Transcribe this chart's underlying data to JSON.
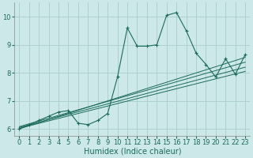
{
  "xlabel": "Humidex (Indice chaleur)",
  "bg_color": "#cce8e8",
  "grid_color": "#aacccc",
  "line_color": "#1a6b5a",
  "xlim": [
    -0.5,
    23.5
  ],
  "ylim": [
    5.75,
    10.5
  ],
  "xticks": [
    0,
    1,
    2,
    3,
    4,
    5,
    6,
    7,
    8,
    9,
    10,
    11,
    12,
    13,
    14,
    15,
    16,
    17,
    18,
    19,
    20,
    21,
    22,
    23
  ],
  "yticks": [
    6,
    7,
    8,
    9,
    10
  ],
  "main_x": [
    0,
    1,
    2,
    3,
    4,
    5,
    6,
    7,
    8,
    9,
    10,
    11,
    12,
    13,
    14,
    15,
    16,
    17,
    18,
    19,
    20,
    21,
    22,
    23
  ],
  "main_y": [
    6.0,
    6.15,
    6.3,
    6.45,
    6.6,
    6.65,
    6.2,
    6.15,
    6.3,
    6.55,
    7.85,
    9.6,
    8.95,
    8.95,
    9.0,
    10.05,
    10.15,
    9.5,
    8.7,
    8.3,
    7.85,
    8.5,
    7.95,
    8.65
  ],
  "reg_lines": [
    {
      "x0": 0,
      "y0": 6.02,
      "x1": 23,
      "y1": 8.05
    },
    {
      "x0": 0,
      "y0": 6.05,
      "x1": 23,
      "y1": 8.2
    },
    {
      "x0": 0,
      "y0": 6.08,
      "x1": 23,
      "y1": 8.38
    },
    {
      "x0": 0,
      "y0": 6.0,
      "x1": 23,
      "y1": 8.55
    }
  ],
  "xlabel_color": "#1a6b5a",
  "xlabel_fontsize": 7,
  "tick_fontsize": 6,
  "tick_color": "#1a6b5a",
  "spine_color": "#888888",
  "lw_main": 0.8,
  "lw_reg": 0.7,
  "marker": "+",
  "markersize": 3,
  "markeredgewidth": 0.8
}
